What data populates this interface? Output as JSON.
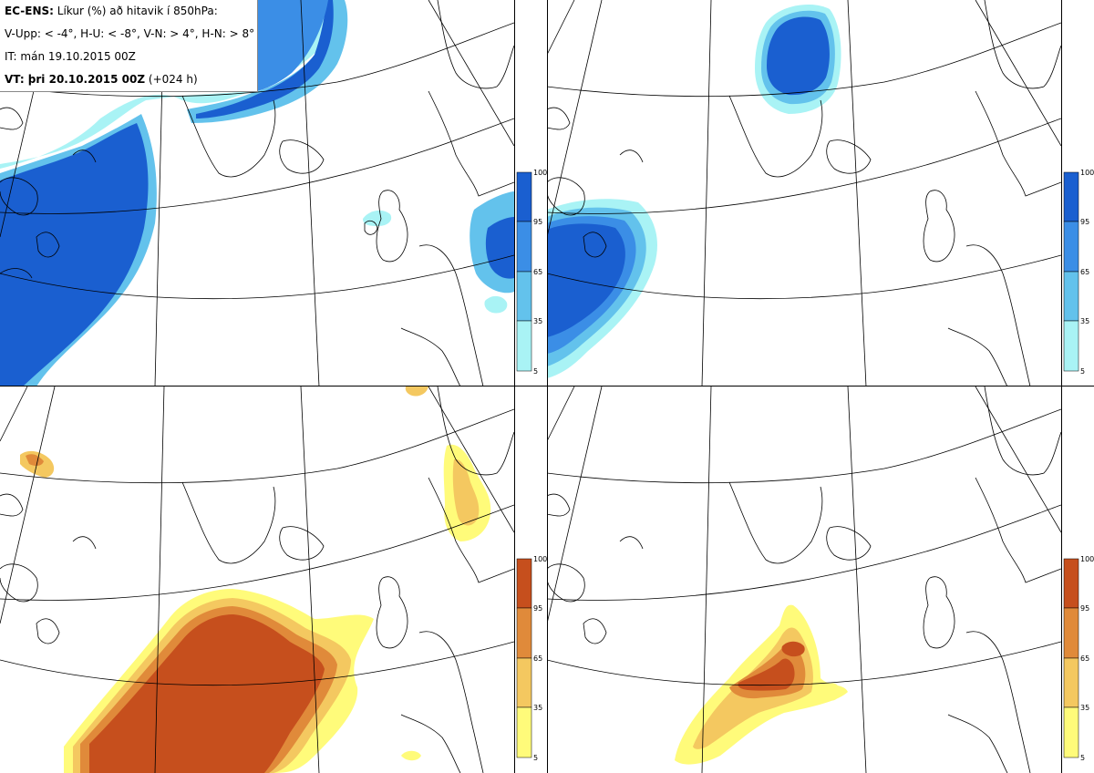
{
  "header": {
    "line1_bold": "EC-ENS:",
    "line1_rest": " Líkur (%) að hitavik í 850hPa:",
    "line2": "V-Upp: < -4°, H-U: < -8°, V-N: > 4°, H-N: > 8°",
    "line3": "IT: mán 19.10.2015 00Z",
    "line4_bold": "VT: þri 20.10.2015 00Z",
    "line4_rest": " (+024 h)"
  },
  "colorbar": {
    "ticks": [
      "100",
      "95",
      "65",
      "35",
      "5"
    ],
    "cold_colors": [
      "#1a5fd0",
      "#3b8ee6",
      "#63c2ec",
      "#a9f3f5"
    ],
    "warm_colors": [
      "#c64f1d",
      "#e08a3a",
      "#f4c860",
      "#fffb7a"
    ]
  },
  "panels": [
    {
      "id": "cold-moderate",
      "palette": "cold"
    },
    {
      "id": "cold-strong",
      "palette": "cold"
    },
    {
      "id": "warm-moderate",
      "palette": "warm"
    },
    {
      "id": "warm-strong",
      "palette": "warm"
    }
  ]
}
